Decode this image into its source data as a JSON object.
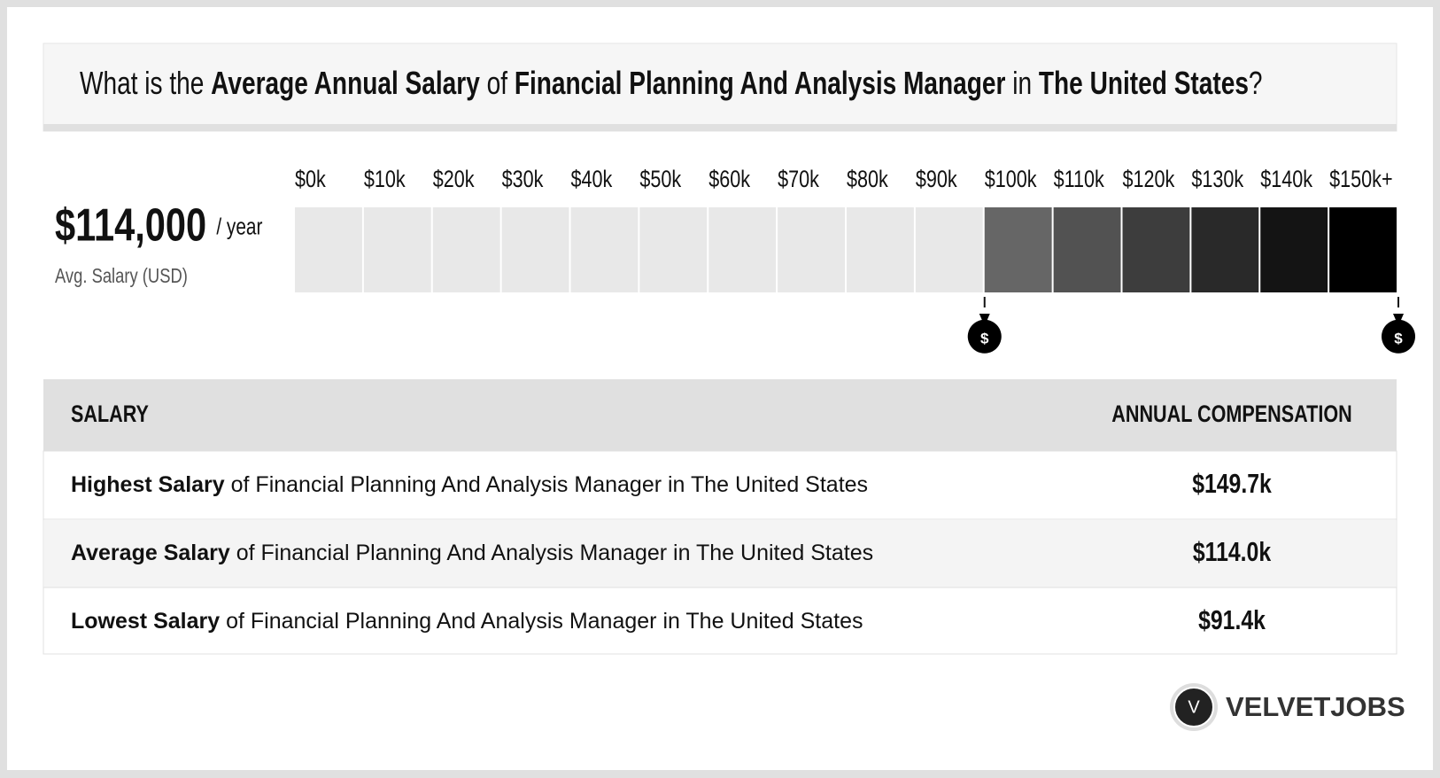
{
  "header": {
    "title": [
      "What is the ",
      "Average Annual Salary",
      " of ",
      "Financial Planning And Analysis Manager",
      " in ",
      "The United States",
      "?"
    ]
  },
  "summary": {
    "amount": "$114,000",
    "unit": "/ year",
    "caption": "Avg. Salary (USD)"
  },
  "scale": {
    "ticks": [
      "$0k",
      "$10k",
      "$20k",
      "$30k",
      "$40k",
      "$50k",
      "$60k",
      "$70k",
      "$80k",
      "$90k",
      "$100k",
      "$110k",
      "$120k",
      "$130k",
      "$140k",
      "$150k+"
    ],
    "marker_symbol": "$"
  },
  "table": {
    "headers": [
      "SALARY",
      "ANNUAL COMPENSATION"
    ],
    "rows": [
      [
        "Highest Salary",
        " of Financial Planning And Analysis Manager in The United States",
        "$149.7k"
      ],
      [
        "Average Salary",
        " of Financial Planning And Analysis Manager in The United States",
        "$114.0k"
      ],
      [
        "Lowest Salary",
        " of Financial Planning And Analysis Manager in The United States",
        "$91.4k"
      ]
    ]
  },
  "brand": {
    "logo_letter": "V",
    "name": "VELVETJOBS"
  }
}
